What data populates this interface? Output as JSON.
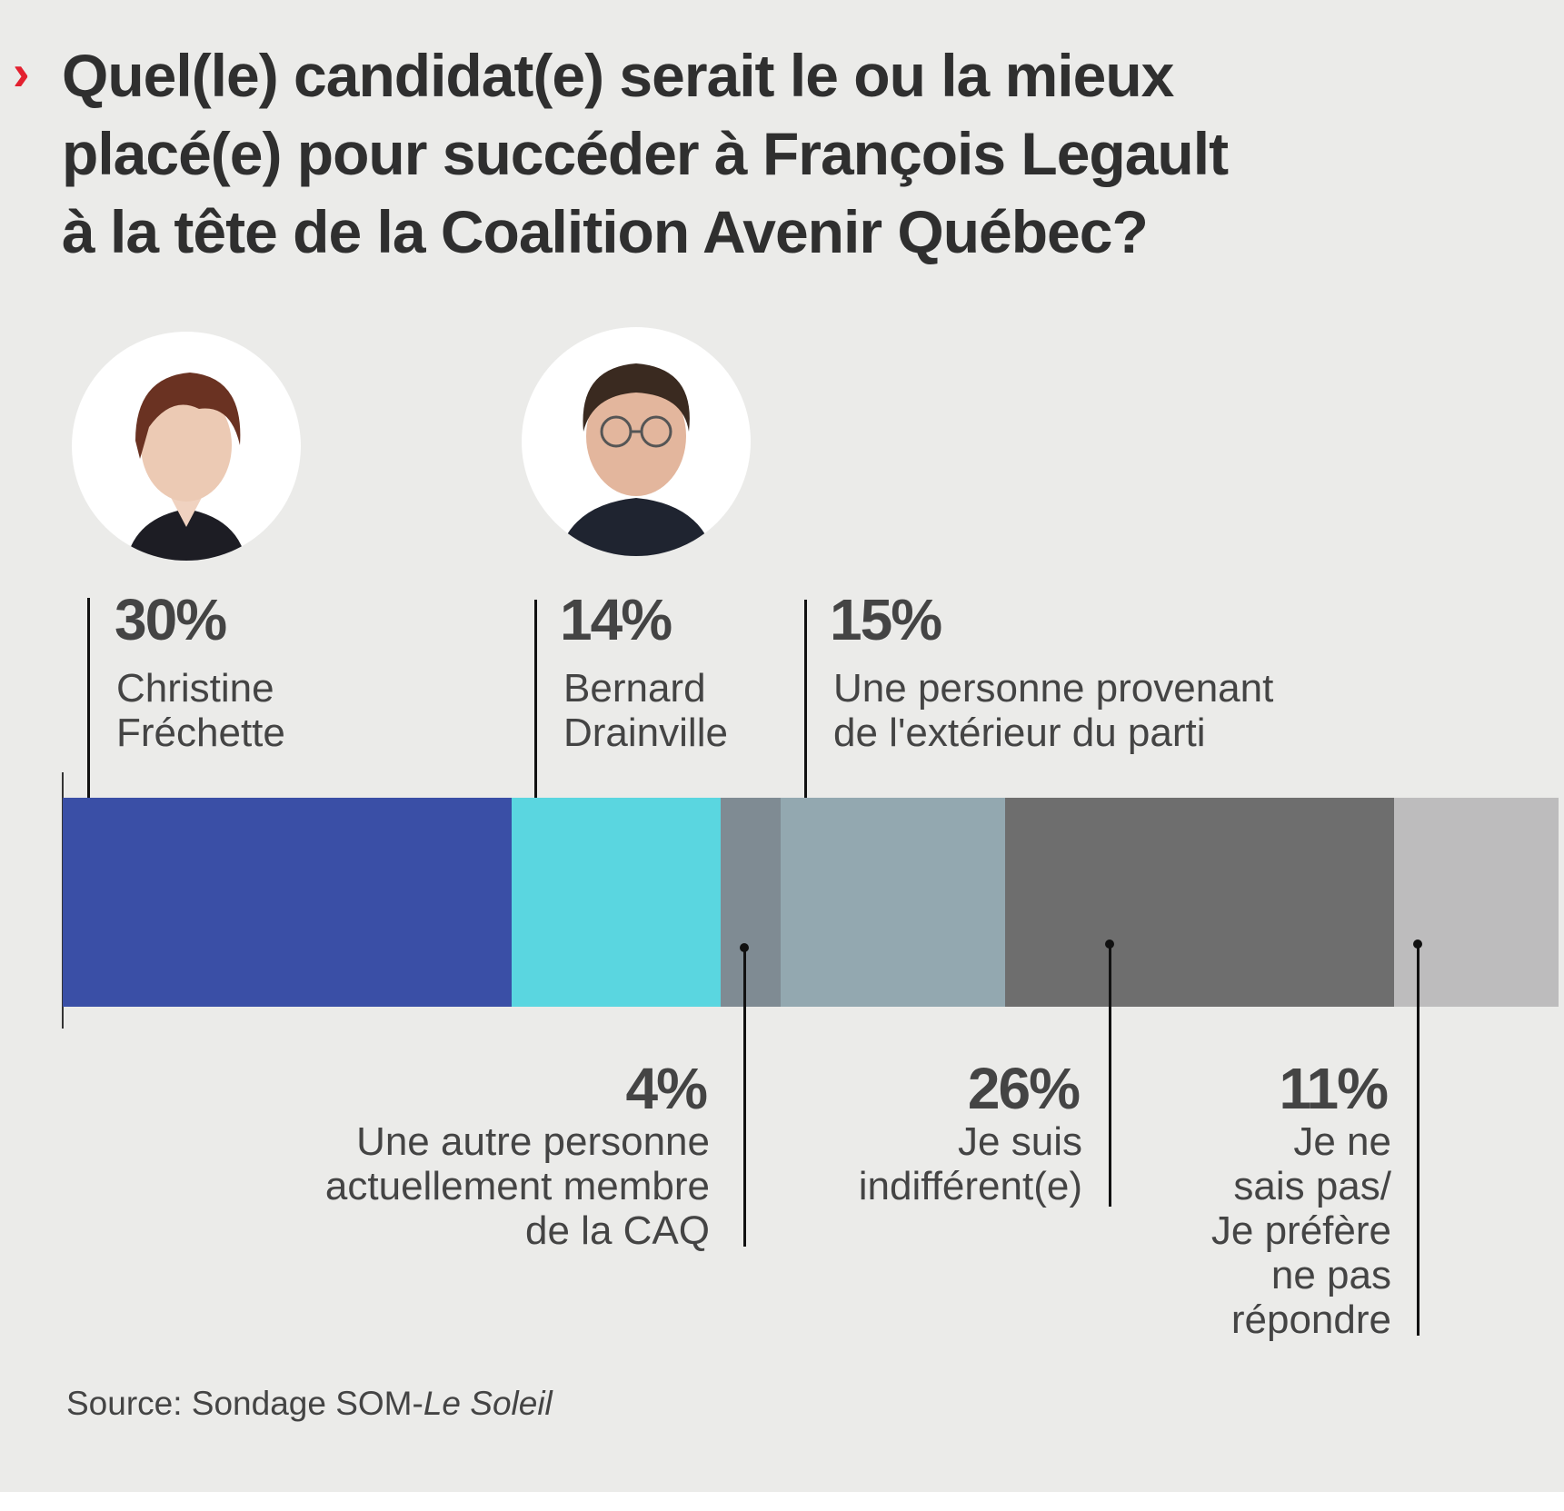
{
  "title": "Quel(le) candidat(e) serait le ou la mieux placé(e) pour succéder à François Legault à la tête de la Coalition Avenir Québec?",
  "title_lines": [
    "Quel(le) candidat(e) serait le ou la mieux",
    "placé(e) pour succéder à François Legault",
    "à la tête de la Coalition Avenir Québec?"
  ],
  "source_prefix": "Source: Sondage SOM-",
  "source_italic": "Le Soleil",
  "chart_data": {
    "type": "bar",
    "orientation": "horizontal-stacked",
    "title": "Quel(le) candidat(e) serait le ou la mieux placé(e) pour succéder à François Legault à la tête de la Coalition Avenir Québec?",
    "categories": [
      "Christine Fréchette",
      "Bernard Drainville",
      "Une autre personne actuellement membre de la CAQ",
      "Une personne provenant de l'extérieur du parti",
      "Je suis indifférent(e)",
      "Je ne sais pas/ Je préfère ne pas répondre"
    ],
    "values": [
      30,
      14,
      4,
      15,
      26,
      11
    ],
    "colors": [
      "#3a4fa6",
      "#5ad6e0",
      "#7f8b93",
      "#93a8b0",
      "#6e6e6e",
      "#bdbcbd"
    ],
    "value_labels": [
      "30%",
      "14%",
      "4%",
      "15%",
      "26%",
      "11%"
    ],
    "label_lines": [
      [
        "Christine",
        "Fréchette"
      ],
      [
        "Bernard",
        "Drainville"
      ],
      [
        "Une autre personne",
        "actuellement membre",
        "de la CAQ"
      ],
      [
        "Une personne provenant",
        "de l'extérieur du parti"
      ],
      [
        "Je suis",
        "indifférent(e)"
      ],
      [
        "Je ne",
        "sais pas/",
        "Je préfère",
        "ne pas",
        "répondre"
      ]
    ],
    "xlim": [
      0,
      100
    ],
    "unit": "%"
  }
}
